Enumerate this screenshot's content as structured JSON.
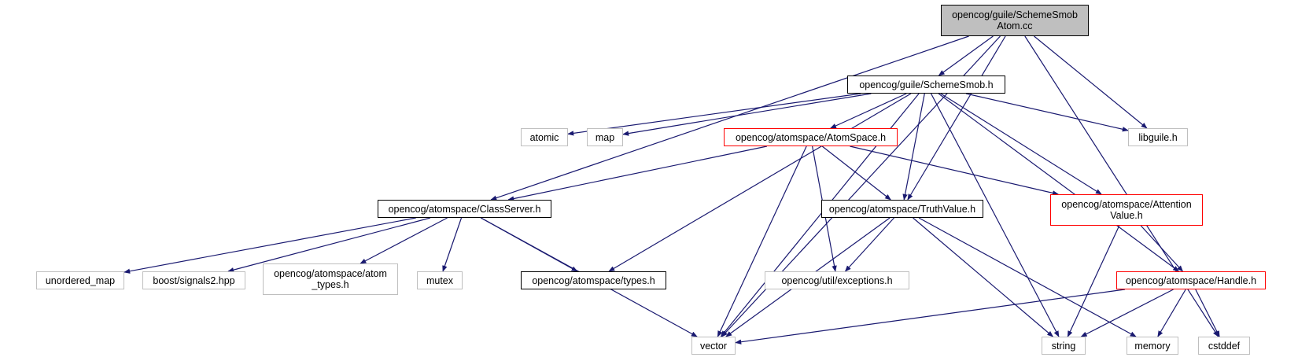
{
  "colors": {
    "edge": "#191970",
    "root_fill": "#bfbfbf",
    "red_border": "#ff0000",
    "system_border": "#bfbfbf",
    "local_border": "#000000"
  },
  "nodes": [
    {
      "id": "root",
      "style": "root",
      "lines": [
        "opencog/guile/SchemeSmob",
        "Atom.cc"
      ]
    },
    {
      "id": "schemesmob",
      "style": "local",
      "lines": [
        "opencog/guile/SchemeSmob.h"
      ]
    },
    {
      "id": "atomic",
      "style": "system",
      "lines": [
        "atomic"
      ]
    },
    {
      "id": "map",
      "style": "system",
      "lines": [
        "map"
      ]
    },
    {
      "id": "atomspace",
      "style": "red",
      "lines": [
        "opencog/atomspace/AtomSpace.h"
      ]
    },
    {
      "id": "libguile",
      "style": "system",
      "lines": [
        "libguile.h"
      ]
    },
    {
      "id": "classserver",
      "style": "local",
      "lines": [
        "opencog/atomspace/ClassServer.h"
      ]
    },
    {
      "id": "truthvalue",
      "style": "local",
      "lines": [
        "opencog/atomspace/TruthValue.h"
      ]
    },
    {
      "id": "attentionvalue",
      "style": "red",
      "lines": [
        "opencog/atomspace/Attention",
        "Value.h"
      ]
    },
    {
      "id": "unordered_map",
      "style": "system",
      "lines": [
        "unordered_map"
      ]
    },
    {
      "id": "signals2",
      "style": "system",
      "lines": [
        "boost/signals2.hpp"
      ]
    },
    {
      "id": "atom_types",
      "style": "system",
      "lines": [
        "opencog/atomspace/atom",
        "_types.h"
      ]
    },
    {
      "id": "mutex",
      "style": "system",
      "lines": [
        "mutex"
      ]
    },
    {
      "id": "types",
      "style": "local",
      "lines": [
        "opencog/atomspace/types.h"
      ]
    },
    {
      "id": "exceptions",
      "style": "system",
      "lines": [
        "opencog/util/exceptions.h"
      ]
    },
    {
      "id": "handle",
      "style": "red",
      "lines": [
        "opencog/atomspace/Handle.h"
      ]
    },
    {
      "id": "vector",
      "style": "system",
      "lines": [
        "vector"
      ]
    },
    {
      "id": "string",
      "style": "system",
      "lines": [
        "string"
      ]
    },
    {
      "id": "memory",
      "style": "system",
      "lines": [
        "memory"
      ]
    },
    {
      "id": "cstddef",
      "style": "system",
      "lines": [
        "cstddef"
      ]
    }
  ],
  "edges": [
    [
      "root",
      "schemesmob"
    ],
    [
      "root",
      "libguile"
    ],
    [
      "root",
      "classserver"
    ],
    [
      "root",
      "truthvalue"
    ],
    [
      "root",
      "vector"
    ],
    [
      "root",
      "cstddef"
    ],
    [
      "schemesmob",
      "atomic"
    ],
    [
      "schemesmob",
      "map"
    ],
    [
      "schemesmob",
      "atomspace"
    ],
    [
      "schemesmob",
      "libguile"
    ],
    [
      "schemesmob",
      "types"
    ],
    [
      "schemesmob",
      "vector"
    ],
    [
      "schemesmob",
      "truthvalue"
    ],
    [
      "schemesmob",
      "attentionvalue"
    ],
    [
      "schemesmob",
      "string"
    ],
    [
      "schemesmob",
      "handle"
    ],
    [
      "atomspace",
      "classserver"
    ],
    [
      "atomspace",
      "truthvalue"
    ],
    [
      "atomspace",
      "attentionvalue"
    ],
    [
      "atomspace",
      "exceptions"
    ],
    [
      "atomspace",
      "vector"
    ],
    [
      "classserver",
      "unordered_map"
    ],
    [
      "classserver",
      "signals2"
    ],
    [
      "classserver",
      "atom_types"
    ],
    [
      "classserver",
      "mutex"
    ],
    [
      "classserver",
      "types"
    ],
    [
      "classserver",
      "vector"
    ],
    [
      "truthvalue",
      "exceptions"
    ],
    [
      "truthvalue",
      "vector"
    ],
    [
      "truthvalue",
      "string"
    ],
    [
      "truthvalue",
      "memory"
    ],
    [
      "attentionvalue",
      "handle"
    ],
    [
      "attentionvalue",
      "string"
    ],
    [
      "handle",
      "vector"
    ],
    [
      "handle",
      "string"
    ],
    [
      "handle",
      "memory"
    ],
    [
      "handle",
      "cstddef"
    ]
  ]
}
